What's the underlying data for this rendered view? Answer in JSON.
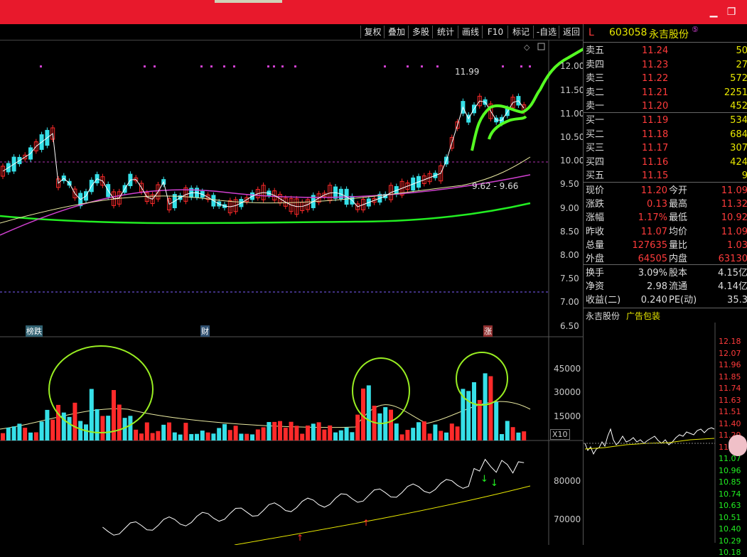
{
  "toolbar": {
    "buttons": [
      "复权",
      "叠加",
      "多股",
      "统计",
      "画线",
      "F10",
      "标记",
      "-自选",
      "返回"
    ]
  },
  "stock": {
    "flag": "L",
    "code": "603058",
    "name": "永吉股份",
    "badge": "⑤"
  },
  "orderbook": {
    "asks": [
      {
        "label": "卖五",
        "price": "11.24",
        "vol": "50"
      },
      {
        "label": "卖四",
        "price": "11.23",
        "vol": "27"
      },
      {
        "label": "卖三",
        "price": "11.22",
        "vol": "572"
      },
      {
        "label": "卖二",
        "price": "11.21",
        "vol": "2251"
      },
      {
        "label": "卖一",
        "price": "11.20",
        "vol": "452"
      }
    ],
    "bids": [
      {
        "label": "买一",
        "price": "11.19",
        "vol": "534"
      },
      {
        "label": "买二",
        "price": "11.18",
        "vol": "684"
      },
      {
        "label": "买三",
        "price": "11.17",
        "vol": "307"
      },
      {
        "label": "买四",
        "price": "11.16",
        "vol": "424"
      },
      {
        "label": "买五",
        "price": "11.15",
        "vol": "9"
      }
    ]
  },
  "stats": [
    {
      "l1": "现价",
      "v1": "11.20",
      "l2": "今开",
      "v2": "11.09"
    },
    {
      "l1": "涨跌",
      "v1": "0.13",
      "l2": "最高",
      "v2": "11.32"
    },
    {
      "l1": "涨幅",
      "v1": "1.17%",
      "l2": "最低",
      "v2": "10.92"
    },
    {
      "l1": "昨收",
      "v1": "11.07",
      "l2": "均价",
      "v2": "11.09"
    },
    {
      "l1": "总量",
      "v1": "127635",
      "l2": "量比",
      "v2": "1.03"
    },
    {
      "l1": "外盘",
      "v1": "64505",
      "l2": "内盘",
      "v2": "63130"
    }
  ],
  "stats2": [
    {
      "l1": "换手",
      "v1": "3.09%",
      "l2": "股本",
      "v2": "4.15亿"
    },
    {
      "l1": "净资",
      "v1": "2.98",
      "l2": "流通",
      "v2": "4.14亿"
    },
    {
      "l1": "收益(二)",
      "v1": "0.240",
      "l2": "PE(动)",
      "v2": "35.3"
    }
  ],
  "mini": {
    "name": "永吉股份",
    "ad": "广告包装",
    "prices": [
      "12.18",
      "12.07",
      "11.96",
      "11.85",
      "11.74",
      "11.63",
      "11.51",
      "11.40",
      "11.29",
      "11.18",
      "11.07",
      "10.96",
      "10.85",
      "10.74",
      "10.63",
      "10.51",
      "10.40",
      "10.29",
      "10.18"
    ]
  },
  "price_axis": [
    "12.00",
    "11.50",
    "11.00",
    "10.50",
    "10.00",
    "9.50",
    "9.00",
    "8.50",
    "8.00",
    "7.50",
    "7.00",
    "6.50"
  ],
  "vol_axis": [
    "45000",
    "30000",
    "15000"
  ],
  "vol_multiplier": "X10",
  "ind_axis": [
    "80000",
    "70000"
  ],
  "annotations": {
    "high": "11.99",
    "range": "9.62 - 9.66",
    "marker1": "榜跌",
    "marker2": "财",
    "marker3": "涨"
  },
  "colors": {
    "up": "#ff2a2a",
    "down": "#36e0e8",
    "ma_green": "#22ee22",
    "ma_magenta": "#d040d0"
  }
}
